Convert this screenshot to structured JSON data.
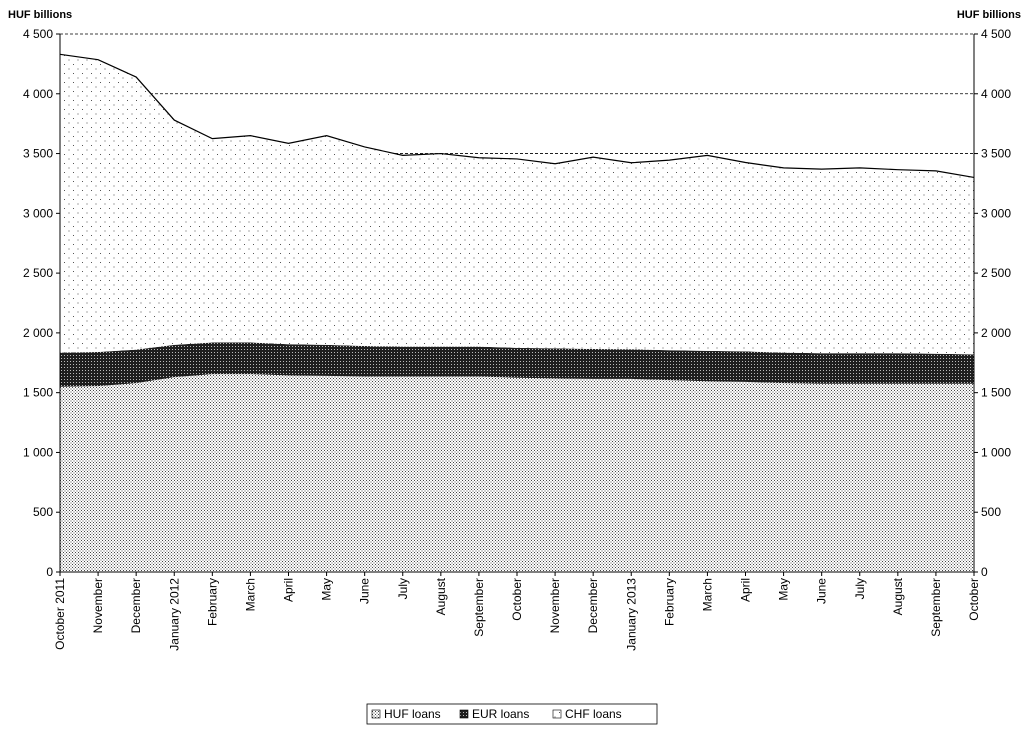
{
  "chart_data": {
    "type": "area",
    "stacked": true,
    "y_unit_left": "HUF billions",
    "y_unit_right": "HUF billions",
    "ylim": [
      0,
      4500
    ],
    "yticks": [
      0,
      500,
      1000,
      1500,
      2000,
      2500,
      3000,
      3500,
      4000,
      4500
    ],
    "ytick_labels": [
      "0",
      "500",
      "1 000",
      "1 500",
      "2 000",
      "2 500",
      "3 000",
      "3 500",
      "4 000",
      "4 500"
    ],
    "gridlines": [
      3500,
      4000,
      4500
    ],
    "categories": [
      "October 2011",
      "November",
      "December",
      "January 2012",
      "February",
      "March",
      "April",
      "May",
      "June",
      "July",
      "August",
      "September",
      "October",
      "November",
      "December",
      "January 2013",
      "February",
      "March",
      "April",
      "May",
      "June",
      "July",
      "August",
      "September",
      "October"
    ],
    "series": [
      {
        "name": "HUF loans",
        "pattern": "fine-dots",
        "values": [
          1550,
          1555,
          1580,
          1630,
          1655,
          1655,
          1645,
          1640,
          1635,
          1635,
          1635,
          1635,
          1625,
          1620,
          1615,
          1615,
          1605,
          1595,
          1590,
          1580,
          1575,
          1575,
          1575,
          1575,
          1575
        ]
      },
      {
        "name": "EUR loans",
        "pattern": "dense-cross",
        "values": [
          285,
          285,
          280,
          270,
          265,
          265,
          260,
          260,
          255,
          250,
          250,
          250,
          250,
          250,
          250,
          248,
          250,
          255,
          255,
          255,
          255,
          255,
          255,
          250,
          245
        ]
      },
      {
        "name": "CHF loans",
        "pattern": "sparse-dots",
        "values": [
          2495,
          2445,
          2280,
          1880,
          1705,
          1730,
          1680,
          1750,
          1665,
          1600,
          1615,
          1580,
          1580,
          1545,
          1605,
          1560,
          1590,
          1635,
          1580,
          1545,
          1540,
          1550,
          1535,
          1530,
          1480
        ]
      }
    ],
    "legend": {
      "position": "bottom-center",
      "entries": [
        "HUF loans",
        "EUR loans",
        "CHF loans"
      ]
    }
  }
}
